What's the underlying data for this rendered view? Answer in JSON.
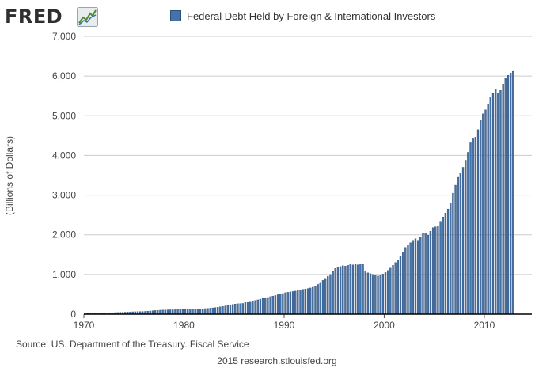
{
  "branding": {
    "logo_text": "FRED",
    "logo_icon": "line-chart-icon",
    "credit": "2015 research.stlouisfed.org"
  },
  "source_text": "Source: US. Department of the Treasury. Fiscal Service",
  "colors": {
    "bar_fill": "#4572a7",
    "bar_edge": "#1f3c66",
    "grid": "#cccccc",
    "axis": "#000000"
  },
  "chart_data": {
    "type": "bar",
    "title": "",
    "legend": [
      "Federal Debt Held by Foreign & International Investors"
    ],
    "legend_position": "top",
    "xlabel": "",
    "ylabel": "(Billions of Dollars)",
    "x_ticks": [
      "1970",
      "1980",
      "1990",
      "2000",
      "2010"
    ],
    "y_ticks": [
      "0",
      "1,000",
      "2,000",
      "3,000",
      "4,000",
      "5,000",
      "6,000",
      "7,000"
    ],
    "xlim": [
      1970,
      2014.75
    ],
    "ylim": [
      0,
      7000
    ],
    "grid": true,
    "frequency": "quarterly",
    "series": [
      {
        "name": "Federal Debt Held by Foreign & International Investors",
        "x_start": "1970 Q1",
        "values": [
          13,
          13,
          14,
          14,
          15,
          18,
          22,
          25,
          30,
          33,
          35,
          37,
          40,
          42,
          44,
          46,
          50,
          54,
          57,
          60,
          62,
          64,
          66,
          67,
          70,
          75,
          80,
          85,
          92,
          96,
          100,
          104,
          106,
          108,
          110,
          111,
          112,
          114,
          116,
          118,
          120,
          122,
          124,
          126,
          128,
          130,
          133,
          137,
          140,
          146,
          152,
          158,
          165,
          175,
          185,
          195,
          205,
          215,
          230,
          245,
          255,
          262,
          266,
          270,
          300,
          310,
          322,
          334,
          345,
          360,
          378,
          396,
          410,
          420,
          440,
          455,
          470,
          490,
          505,
          520,
          540,
          550,
          560,
          570,
          580,
          595,
          610,
          625,
          635,
          645,
          660,
          680,
          700,
          750,
          800,
          850,
          900,
          950,
          1000,
          1080,
          1150,
          1180,
          1200,
          1220,
          1210,
          1230,
          1250,
          1240,
          1250,
          1240,
          1260,
          1250,
          1070,
          1040,
          1020,
          1000,
          980,
          960,
          980,
          1010,
          1050,
          1100,
          1160,
          1230,
          1300,
          1370,
          1450,
          1560,
          1680,
          1740,
          1800,
          1860,
          1900,
          1860,
          1950,
          2030,
          2050,
          1990,
          2090,
          2180,
          2200,
          2230,
          2340,
          2450,
          2550,
          2650,
          2800,
          3050,
          3250,
          3450,
          3560,
          3700,
          3880,
          4080,
          4320,
          4420,
          4460,
          4650,
          4900,
          5050,
          5150,
          5300,
          5480,
          5560,
          5680,
          5580,
          5640,
          5800,
          5950,
          6020,
          6080,
          6120
        ]
      }
    ]
  }
}
